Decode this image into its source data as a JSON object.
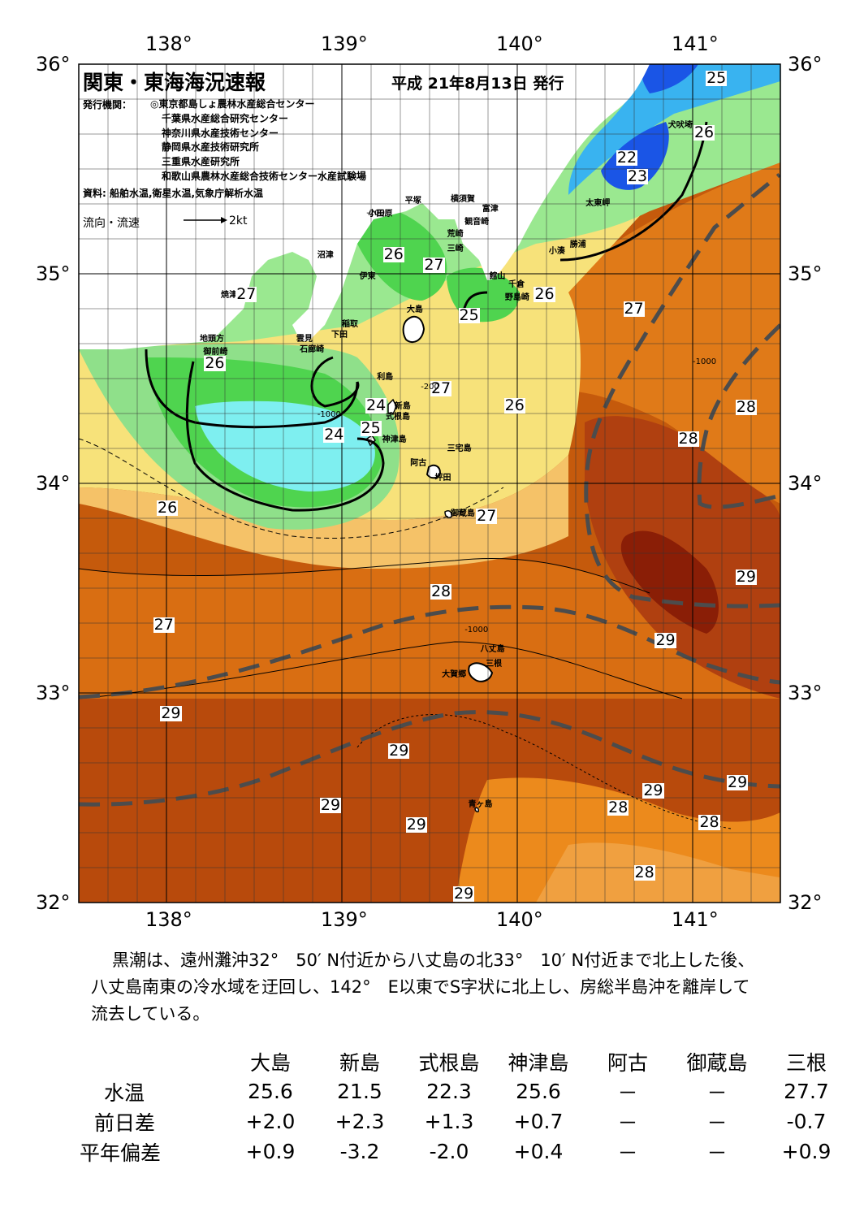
{
  "map": {
    "title": "関東・東海海況速報",
    "date": "平成 21年8月13日 発行",
    "publisher_label": "発行機関：",
    "publishers": [
      "◎東京都島しょ農林水産総合センター",
      "千葉県水産総合研究センター",
      "神奈川県水産技術センター",
      "静岡県水産技術研究所",
      "三重県水産研究所",
      "和歌山県農林水産総合技術センター水産試験場"
    ],
    "sources": "資料: 船舶水温,衛星水温,気象庁解析水温",
    "flow_label": "流向・流速",
    "flow_unit": "2kt",
    "lon_labels": [
      "138°",
      "139°",
      "140°",
      "141°"
    ],
    "lat_labels": [
      "36°",
      "35°",
      "34°",
      "33°",
      "32°"
    ],
    "lon_range": [
      137.5,
      141.5
    ],
    "lat_range": [
      32,
      36
    ],
    "place_names": [
      {
        "name": "犬吠埼",
        "lon": 140.86,
        "lat": 35.72
      },
      {
        "name": "太東岬",
        "lon": 140.39,
        "lat": 35.35
      },
      {
        "name": "勝浦",
        "lon": 140.3,
        "lat": 35.15
      },
      {
        "name": "小湊",
        "lon": 140.18,
        "lat": 35.12
      },
      {
        "name": "富津",
        "lon": 139.8,
        "lat": 35.32
      },
      {
        "name": "横須賀",
        "lon": 139.62,
        "lat": 35.37
      },
      {
        "name": "平塚",
        "lon": 139.36,
        "lat": 35.36
      },
      {
        "name": "観音崎",
        "lon": 139.7,
        "lat": 35.26
      },
      {
        "name": "荒崎",
        "lon": 139.6,
        "lat": 35.2
      },
      {
        "name": "小田原",
        "lon": 139.15,
        "lat": 35.3
      },
      {
        "name": "三崎",
        "lon": 139.6,
        "lat": 35.13
      },
      {
        "name": "館山",
        "lon": 139.84,
        "lat": 35.0
      },
      {
        "name": "千倉",
        "lon": 139.95,
        "lat": 34.96
      },
      {
        "name": "野島崎",
        "lon": 139.93,
        "lat": 34.9
      },
      {
        "name": "沼津",
        "lon": 138.86,
        "lat": 35.1
      },
      {
        "name": "伊東",
        "lon": 139.1,
        "lat": 35.0
      },
      {
        "name": "焼津",
        "lon": 138.31,
        "lat": 34.91
      },
      {
        "name": "大島",
        "lon": 139.37,
        "lat": 34.84
      },
      {
        "name": "稲取",
        "lon": 139.0,
        "lat": 34.77
      },
      {
        "name": "下田",
        "lon": 138.94,
        "lat": 34.72
      },
      {
        "name": "雲見",
        "lon": 138.74,
        "lat": 34.7
      },
      {
        "name": "石廊崎",
        "lon": 138.76,
        "lat": 34.65
      },
      {
        "name": "地頭方",
        "lon": 138.19,
        "lat": 34.7
      },
      {
        "name": "御前崎",
        "lon": 138.21,
        "lat": 34.64
      },
      {
        "name": "利島",
        "lon": 139.2,
        "lat": 34.52
      },
      {
        "name": "新島",
        "lon": 139.3,
        "lat": 34.38
      },
      {
        "name": "式根島",
        "lon": 139.25,
        "lat": 34.33
      },
      {
        "name": "神津島",
        "lon": 139.23,
        "lat": 34.22
      },
      {
        "name": "三宅島",
        "lon": 139.6,
        "lat": 34.18
      },
      {
        "name": "阿古",
        "lon": 139.39,
        "lat": 34.11
      },
      {
        "name": "坪田",
        "lon": 139.53,
        "lat": 34.04
      },
      {
        "name": "御蔵島",
        "lon": 139.62,
        "lat": 33.87
      },
      {
        "name": "八丈島",
        "lon": 139.79,
        "lat": 33.22
      },
      {
        "name": "三根",
        "lon": 139.82,
        "lat": 33.15
      },
      {
        "name": "大賀郷",
        "lon": 139.57,
        "lat": 33.1
      },
      {
        "name": "青ヶ島",
        "lon": 139.72,
        "lat": 32.48
      }
    ],
    "temperature_labels": [
      {
        "text": "25",
        "lon": 141.13,
        "lat": 35.93
      },
      {
        "text": "26",
        "lon": 141.06,
        "lat": 35.67
      },
      {
        "text": "22",
        "lon": 140.62,
        "lat": 35.55
      },
      {
        "text": "23",
        "lon": 140.68,
        "lat": 35.46
      },
      {
        "text": "26",
        "lon": 139.29,
        "lat": 35.09
      },
      {
        "text": "27",
        "lon": 139.52,
        "lat": 35.04
      },
      {
        "text": "27",
        "lon": 138.45,
        "lat": 34.9
      },
      {
        "text": "26",
        "lon": 140.15,
        "lat": 34.9
      },
      {
        "text": "25",
        "lon": 139.72,
        "lat": 34.8
      },
      {
        "text": "27",
        "lon": 140.66,
        "lat": 34.83
      },
      {
        "text": "26",
        "lon": 138.27,
        "lat": 34.57
      },
      {
        "text": "27",
        "lon": 139.56,
        "lat": 34.45
      },
      {
        "text": "24",
        "lon": 139.19,
        "lat": 34.37
      },
      {
        "text": "26",
        "lon": 139.98,
        "lat": 34.37
      },
      {
        "text": "28",
        "lon": 141.3,
        "lat": 34.36
      },
      {
        "text": "25",
        "lon": 139.16,
        "lat": 34.26
      },
      {
        "text": "24",
        "lon": 138.95,
        "lat": 34.23
      },
      {
        "text": "28",
        "lon": 140.97,
        "lat": 34.21
      },
      {
        "text": "26",
        "lon": 138.0,
        "lat": 33.88
      },
      {
        "text": "27",
        "lon": 139.82,
        "lat": 33.84
      },
      {
        "text": "29",
        "lon": 141.3,
        "lat": 33.55
      },
      {
        "text": "28",
        "lon": 139.56,
        "lat": 33.48
      },
      {
        "text": "27",
        "lon": 137.98,
        "lat": 33.32
      },
      {
        "text": "29",
        "lon": 140.84,
        "lat": 33.25
      },
      {
        "text": "29",
        "lon": 138.02,
        "lat": 32.9
      },
      {
        "text": "29",
        "lon": 139.32,
        "lat": 32.72
      },
      {
        "text": "29",
        "lon": 141.25,
        "lat": 32.57
      },
      {
        "text": "29",
        "lon": 140.77,
        "lat": 32.53
      },
      {
        "text": "28",
        "lon": 140.57,
        "lat": 32.45
      },
      {
        "text": "29",
        "lon": 138.93,
        "lat": 32.46
      },
      {
        "text": "28",
        "lon": 141.09,
        "lat": 32.38
      },
      {
        "text": "29",
        "lon": 139.42,
        "lat": 32.37
      },
      {
        "text": "28",
        "lon": 140.72,
        "lat": 32.14
      },
      {
        "text": "29",
        "lon": 139.69,
        "lat": 32.04
      }
    ],
    "depth_labels": [
      "-200",
      "-1000"
    ]
  },
  "summary": "黒潮は、遠州灘沖32°　50′ N付近から八丈島の北33°　10′ N付近まで北上した後、八丈島南東の冷水域を迂回し、142°　E以東でS字状に北上し、房総半島沖を離岸して流去している。",
  "table": {
    "columns": [
      "大島",
      "新島",
      "式根島",
      "神津島",
      "阿古",
      "御蔵島",
      "三根"
    ],
    "rows": [
      {
        "label": "水温",
        "values": [
          "25.6",
          "21.5",
          "22.3",
          "25.6",
          "－",
          "－",
          "27.7"
        ]
      },
      {
        "label": "前日差",
        "values": [
          "+2.0",
          "+2.3",
          "+1.3",
          "+0.7",
          "－",
          "－",
          "-0.7"
        ]
      },
      {
        "label": "平年偏差",
        "values": [
          "+0.9",
          "-3.2",
          "-2.0",
          "+0.4",
          "－",
          "－",
          "+0.9"
        ]
      }
    ]
  },
  "colors": {
    "t22": "#1a55e6",
    "t23": "#39b3f0",
    "t24": "#7eeff0",
    "t25": "#4fd44f",
    "t26": "#9ae890",
    "t27": "#f7f29a",
    "t27b": "#f5c268",
    "t28": "#ec8a1c",
    "t28b": "#d96e12",
    "t29": "#c55a0c",
    "t29b": "#a8380a",
    "t30": "#8a1e06",
    "kuroshio": "#4c4c4c"
  }
}
